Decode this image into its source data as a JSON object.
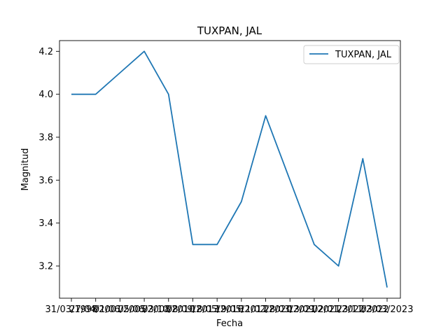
{
  "chart_data": {
    "type": "line",
    "title": "TUXPAN, JAL",
    "xlabel": "Fecha",
    "ylabel": "Magnitud",
    "categories": [
      "31/03/1998",
      "27/04/2001",
      "01/06/2005",
      "05/06/2008",
      "03/10/2010",
      "08/09/2013",
      "18/05/2016",
      "19/05/2017",
      "11/02/2020",
      "28/03/2021",
      "13/09/2021",
      "02/01/2022",
      "23/11/2022",
      "03/03/2023"
    ],
    "series": [
      {
        "name": "TUXPAN, JAL",
        "values": [
          4.0,
          4.0,
          4.1,
          4.2,
          4.0,
          3.3,
          3.3,
          3.5,
          3.9,
          3.6,
          3.3,
          3.2,
          3.7,
          3.1
        ]
      }
    ],
    "ylim": [
      3.05,
      4.25
    ],
    "yticks": [
      3.2,
      3.4,
      3.6,
      3.8,
      4.0,
      4.2
    ],
    "ytick_labels": [
      "3.2",
      "3.4",
      "3.6",
      "3.8",
      "4.0",
      "4.2"
    ],
    "legend_position": "top-right",
    "grid": false,
    "line_color": "#1f77b4"
  }
}
